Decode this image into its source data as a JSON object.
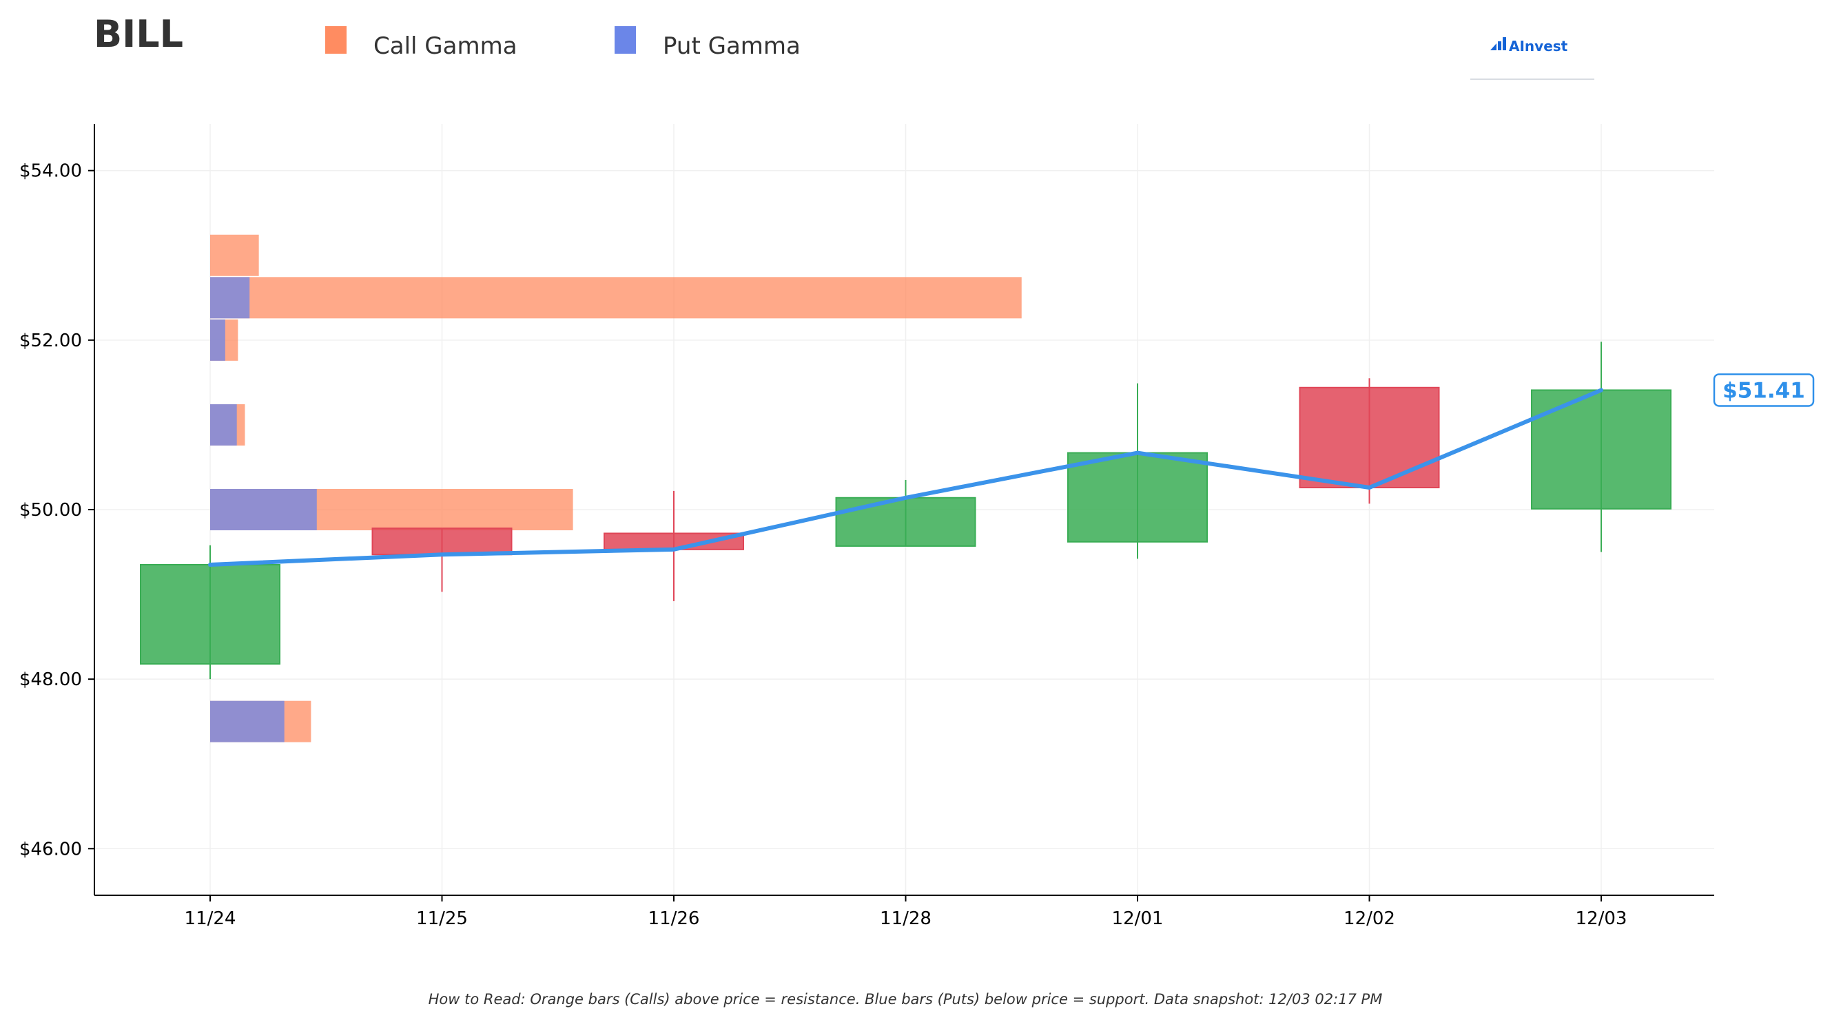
{
  "header": {
    "title": "BILL",
    "logo_text": "AInvest"
  },
  "legend": [
    {
      "label": "Call Gamma",
      "color": "#ff8c61"
    },
    {
      "label": "Put Gamma",
      "color": "#6b86e8"
    }
  ],
  "footnote": "How to Read: Orange bars (Calls) above price = resistance. Blue bars (Puts) below price = support. Data snapshot: 12/03 02:17 PM",
  "price_label": "$51.41",
  "colors": {
    "up": "#3aad55",
    "down": "#e04657",
    "line": "#3b93ea",
    "call": "#ff8c61",
    "put": "#6b86e8"
  },
  "chart_data": {
    "type": "candlestick",
    "categories": [
      "11/24",
      "11/25",
      "11/26",
      "11/28",
      "12/01",
      "12/02",
      "12/03"
    ],
    "ylim": [
      45.45,
      54.55
    ],
    "yticks": [
      46,
      48,
      50,
      52,
      54
    ],
    "ytick_labels": [
      "$46.00",
      "$48.00",
      "$50.00",
      "$52.00",
      "$54.00"
    ],
    "grid": true,
    "legend_position": "top",
    "candles": [
      {
        "date": "11/24",
        "open": 48.18,
        "high": 49.58,
        "low": 48.0,
        "close": 49.35
      },
      {
        "date": "11/25",
        "open": 49.78,
        "high": 49.78,
        "low": 49.03,
        "close": 49.47
      },
      {
        "date": "11/26",
        "open": 49.72,
        "high": 50.22,
        "low": 48.92,
        "close": 49.53
      },
      {
        "date": "11/28",
        "open": 49.57,
        "high": 50.35,
        "low": 49.57,
        "close": 50.14
      },
      {
        "date": "12/01",
        "open": 49.62,
        "high": 51.49,
        "low": 49.42,
        "close": 50.67
      },
      {
        "date": "12/02",
        "open": 51.44,
        "high": 51.55,
        "low": 50.07,
        "close": 50.26
      },
      {
        "date": "12/03",
        "open": 50.01,
        "high": 51.98,
        "low": 49.5,
        "close": 51.41
      }
    ],
    "price_line": {
      "x": [
        "11/24",
        "11/25",
        "11/26",
        "11/28",
        "12/01",
        "12/02",
        "12/03"
      ],
      "y": [
        49.35,
        49.47,
        49.53,
        50.14,
        50.67,
        50.26,
        51.41
      ]
    },
    "gamma_bars": [
      {
        "strike": 53.0,
        "call": 0.21,
        "put": 0.0
      },
      {
        "strike": 52.5,
        "call": 3.5,
        "put": 0.17
      },
      {
        "strike": 52.0,
        "call": 0.12,
        "put": 0.065
      },
      {
        "strike": 51.0,
        "call": 0.15,
        "put": 0.115
      },
      {
        "strike": 50.0,
        "call": 1.565,
        "put": 0.46
      },
      {
        "strike": 47.5,
        "call": 0.435,
        "put": 0.32
      }
    ]
  }
}
